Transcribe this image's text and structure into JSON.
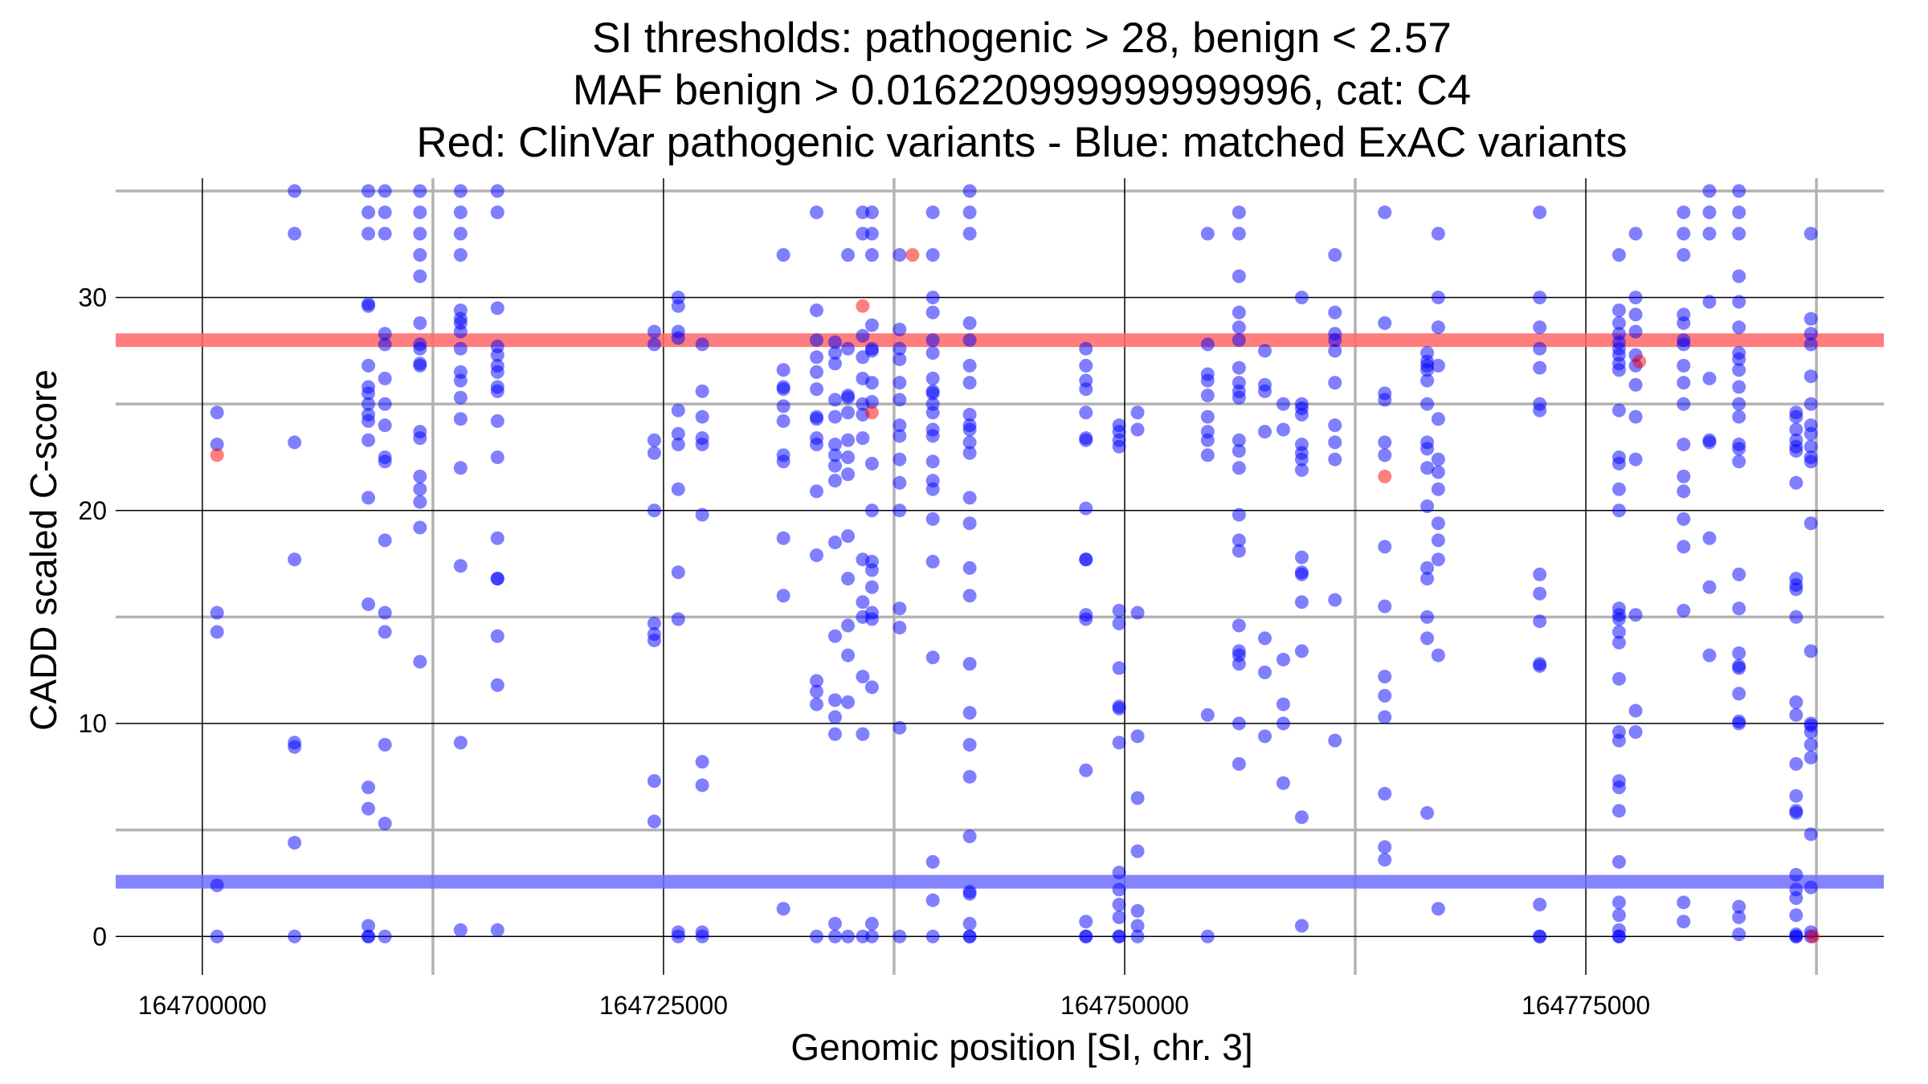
{
  "chart_data": {
    "type": "scatter",
    "title_lines": [
      "SI thresholds: pathogenic > 28, benign < 2.57",
      "MAF benign > 0.016220999999999996, cat: C4",
      "Red: ClinVar pathogenic variants - Blue: matched ExAC variants"
    ],
    "xlabel": "Genomic position [SI, chr. 3]",
    "ylabel": "CADD scaled C-score",
    "xlim": [
      164696000,
      164790500
    ],
    "ylim": [
      -1.8,
      35.6
    ],
    "x_ticks": [
      164700000,
      164725000,
      164750000,
      164775000
    ],
    "x_tick_labels": [
      "164700000",
      "164725000",
      "164750000",
      "164775000"
    ],
    "y_ticks": [
      0,
      10,
      20,
      30
    ],
    "y_tick_labels": [
      "0",
      "10",
      "20",
      "30"
    ],
    "x_grid_major": [
      164700000,
      164725000,
      164750000,
      164775000
    ],
    "x_grid_minor": [
      164712500,
      164737500,
      164762500,
      164787500
    ],
    "y_grid_major": [
      0,
      10,
      20,
      30
    ],
    "y_grid_minor": [
      5,
      15,
      25,
      35
    ],
    "thresholds": [
      {
        "name": "pathogenic",
        "value": 28,
        "color": "#ff6666"
      },
      {
        "name": "benign",
        "value": 2.57,
        "color": "#6f6fff"
      }
    ],
    "colors": {
      "pathogenic_points": "#ff0000",
      "benign_points": "#0000ff"
    },
    "series": [
      {
        "name": "ClinVar pathogenic variants",
        "color": "#ff0000",
        "points": [
          [
            164700800,
            22.6
          ],
          [
            164735800,
            29.6
          ],
          [
            164736300,
            24.6
          ],
          [
            164738500,
            32.0
          ],
          [
            164764100,
            21.6
          ],
          [
            164777900,
            27.0
          ],
          [
            164787300,
            0.0
          ]
        ]
      },
      {
        "name": "matched ExAC variants",
        "color": "#0000ff",
        "columns": [
          {
            "x": 164700800,
            "y": [
              24.6,
              23.1,
              15.2,
              14.3,
              2.4,
              0
            ]
          },
          {
            "x": 164705000,
            "y": [
              35,
              33,
              23.2,
              17.7,
              9.1,
              8.9,
              4.4,
              0
            ]
          },
          {
            "x": 164709000,
            "y": [
              35,
              34,
              33,
              29.7,
              29.6,
              26.8,
              25.8,
              25.5,
              25.0,
              24.5,
              24.2,
              23.3,
              20.6,
              15.6,
              7.0,
              6.0,
              0.5,
              0,
              0
            ]
          },
          {
            "x": 164709900,
            "y": [
              35,
              34,
              33,
              28.3,
              27.8,
              26.2,
              25.0,
              24.0,
              22.5,
              22.3,
              18.6,
              15.2,
              14.3,
              9.0,
              5.3,
              0
            ]
          },
          {
            "x": 164711800,
            "y": [
              35,
              34,
              33,
              32,
              31,
              28.8,
              27.8,
              27.6,
              26.9,
              26.8,
              23.7,
              23.4,
              21.6,
              21.0,
              20.4,
              19.2,
              12.9
            ]
          },
          {
            "x": 164714000,
            "y": [
              35,
              34,
              33,
              32,
              29.4,
              29.0,
              28.8,
              28.4,
              27.6,
              26.5,
              26.1,
              25.3,
              24.3,
              22.0,
              17.4,
              9.1,
              0.3
            ]
          },
          {
            "x": 164716000,
            "y": [
              35,
              34,
              29.5,
              27.7,
              27.3,
              26.8,
              26.5,
              25.8,
              25.6,
              24.2,
              22.5,
              18.7,
              16.8,
              16.8,
              14.1,
              11.8,
              0.3
            ]
          },
          {
            "x": 164724500,
            "y": [
              28.4,
              27.8,
              23.3,
              22.7,
              20.0,
              14.7,
              14.2,
              13.9,
              7.3,
              5.4
            ]
          },
          {
            "x": 164725800,
            "y": [
              30.0,
              29.6,
              28.4,
              28.1,
              24.7,
              23.6,
              23.1,
              21.0,
              17.1,
              14.9,
              0.2,
              0
            ]
          },
          {
            "x": 164727100,
            "y": [
              27.8,
              25.6,
              24.4,
              23.4,
              23.1,
              19.8,
              8.2,
              7.1,
              0.2,
              0
            ]
          },
          {
            "x": 164731500,
            "y": [
              32,
              26.6,
              25.8,
              25.7,
              24.9,
              24.2,
              22.6,
              22.3,
              18.7,
              16.0,
              1.3
            ]
          },
          {
            "x": 164733300,
            "y": [
              34,
              29.4,
              28.0,
              27.2,
              26.5,
              25.7,
              24.4,
              24.3,
              23.4,
              23.1,
              20.9,
              17.9,
              12.0,
              11.5,
              10.9,
              0
            ]
          },
          {
            "x": 164734300,
            "y": [
              27.9,
              27.4,
              26.9,
              25.2,
              24.4,
              23.1,
              22.6,
              22.1,
              21.4,
              18.5,
              14.1,
              11.1,
              10.3,
              9.5,
              0.6,
              0
            ]
          },
          {
            "x": 164735000,
            "y": [
              32,
              27.6,
              25.4,
              25.3,
              24.6,
              23.3,
              22.5,
              21.7,
              18.8,
              16.8,
              14.6,
              13.2,
              11.0,
              0
            ]
          },
          {
            "x": 164735800,
            "y": [
              34,
              33,
              28.2,
              27.2,
              26.2,
              25.0,
              24.5,
              23.4,
              17.7,
              15.7,
              15.0,
              12.2,
              9.5,
              0
            ]
          },
          {
            "x": 164736300,
            "y": [
              34,
              33,
              32,
              28.7,
              27.6,
              27.5,
              26.0,
              25.1,
              22.2,
              20.0,
              17.6,
              17.2,
              16.4,
              15.2,
              14.9,
              11.7,
              0.6,
              0
            ]
          },
          {
            "x": 164737800,
            "y": [
              32,
              28.5,
              27.6,
              27.1,
              26.0,
              25.2,
              24.0,
              23.5,
              22.4,
              21.3,
              20.0,
              15.4,
              14.5,
              9.8,
              0
            ]
          },
          {
            "x": 164739600,
            "y": [
              34,
              32,
              30.0,
              29.3,
              28.0,
              27.4,
              26.2,
              25.6,
              25.5,
              25.0,
              24.6,
              23.8,
              23.5,
              22.3,
              21.4,
              21.0,
              19.6,
              17.6,
              13.1,
              3.5,
              1.7,
              0
            ]
          },
          {
            "x": 164741600,
            "y": [
              35,
              34,
              33,
              28.8,
              28.0,
              26.8,
              26.0,
              24.5,
              24.0,
              23.8,
              23.2,
              22.7,
              20.6,
              19.4,
              17.3,
              16.0,
              12.8,
              10.5,
              9.0,
              7.5,
              4.7,
              2.1,
              2.0,
              0.6,
              0,
              0
            ]
          },
          {
            "x": 164747900,
            "y": [
              27.6,
              26.8,
              26.1,
              25.7,
              24.6,
              23.4,
              23.3,
              20.1,
              17.7,
              17.7,
              15.1,
              14.9,
              7.8,
              0.7,
              0,
              0
            ]
          },
          {
            "x": 164749700,
            "y": [
              24.0,
              23.7,
              23.3,
              23.0,
              15.3,
              14.7,
              12.6,
              10.8,
              10.7,
              9.1,
              3.0,
              2.2,
              1.5,
              0.9,
              0,
              0
            ]
          },
          {
            "x": 164750700,
            "y": [
              24.6,
              23.8,
              15.2,
              9.4,
              6.5,
              4.0,
              1.2,
              0.5,
              0
            ]
          },
          {
            "x": 164754500,
            "y": [
              33,
              27.8,
              26.4,
              26.1,
              25.4,
              24.4,
              23.7,
              23.3,
              22.6,
              10.4,
              0
            ]
          },
          {
            "x": 164756200,
            "y": [
              34,
              33,
              31.0,
              29.3,
              28.6,
              28.0,
              26.7,
              26.0,
              25.6,
              25.3,
              23.3,
              22.8,
              22.0,
              19.8,
              18.6,
              18.1,
              14.6,
              13.4,
              13.2,
              12.8,
              10.0,
              8.1
            ]
          },
          {
            "x": 164757600,
            "y": [
              27.5,
              25.9,
              25.6,
              23.7,
              14.0,
              12.4,
              9.4
            ]
          },
          {
            "x": 164758600,
            "y": [
              25.0,
              23.8,
              13.0,
              10.9,
              10.0,
              7.2
            ]
          },
          {
            "x": 164759600,
            "y": [
              30.0,
              25.0,
              24.8,
              24.5,
              23.1,
              22.7,
              22.4,
              21.9,
              17.8,
              17.1,
              17.0,
              15.7,
              13.4,
              5.6,
              0.5
            ]
          },
          {
            "x": 164761400,
            "y": [
              32,
              29.3,
              28.3,
              28.0,
              27.5,
              26.0,
              24.0,
              23.2,
              22.4,
              15.8,
              9.2
            ]
          },
          {
            "x": 164764100,
            "y": [
              34,
              28.8,
              25.5,
              25.2,
              23.2,
              22.6,
              18.3,
              15.5,
              12.2,
              11.3,
              10.3,
              6.7,
              4.2,
              3.6
            ]
          },
          {
            "x": 164766400,
            "y": [
              27.4,
              27.0,
              26.8,
              26.6,
              26.1,
              25.0,
              23.2,
              22.9,
              22.0,
              20.2,
              17.3,
              16.8,
              15.0,
              14.0,
              5.8
            ]
          },
          {
            "x": 164767000,
            "y": [
              33,
              30.0,
              28.6,
              26.8,
              24.3,
              22.4,
              21.8,
              21.0,
              19.4,
              18.6,
              17.7,
              13.2,
              1.3
            ]
          },
          {
            "x": 164772500,
            "y": [
              34,
              30.0,
              28.6,
              27.6,
              26.7,
              25.0,
              24.7,
              17.0,
              16.1,
              14.8,
              12.8,
              12.7,
              1.5,
              0,
              0
            ]
          },
          {
            "x": 164776800,
            "y": [
              32,
              29.4,
              28.8,
              28.3,
              27.9,
              27.6,
              27.3,
              26.9,
              26.6,
              24.7,
              22.5,
              22.2,
              21.0,
              20.0,
              15.4,
              15.1,
              14.9,
              14.3,
              13.8,
              12.1,
              9.6,
              9.2,
              7.3,
              7.0,
              5.9,
              3.5,
              1.6,
              1.0,
              0.3,
              0,
              0
            ]
          },
          {
            "x": 164777700,
            "y": [
              33,
              30.0,
              29.2,
              28.4,
              27.3,
              26.8,
              25.9,
              24.4,
              22.4,
              15.1,
              10.6,
              9.6
            ]
          },
          {
            "x": 164780300,
            "y": [
              34,
              33,
              32,
              29.2,
              28.8,
              28.0,
              27.8,
              26.8,
              26.0,
              25.0,
              23.1,
              21.6,
              20.9,
              19.6,
              18.3,
              15.3,
              1.6,
              0.7
            ]
          },
          {
            "x": 164781700,
            "y": [
              35,
              34,
              33,
              29.8,
              26.2,
              23.3,
              23.2,
              18.7,
              16.4,
              13.2
            ]
          },
          {
            "x": 164783300,
            "y": [
              35,
              34,
              33,
              31.0,
              29.8,
              28.6,
              27.4,
              27.1,
              26.6,
              25.8,
              25.0,
              24.4,
              23.1,
              22.9,
              22.3,
              17.0,
              15.4,
              13.3,
              12.7,
              12.6,
              11.4,
              10.1,
              10.0,
              1.4,
              0.9,
              0.1
            ]
          },
          {
            "x": 164786400,
            "y": [
              24.6,
              24.4,
              23.8,
              23.3,
              23.0,
              22.8,
              21.3,
              16.8,
              16.5,
              16.3,
              15.0,
              11.0,
              10.4,
              8.1,
              6.6,
              5.9,
              5.8,
              2.9,
              2.2,
              1.8,
              1.0,
              0.1,
              0,
              0
            ]
          },
          {
            "x": 164787200,
            "y": [
              33,
              29.0,
              28.3,
              27.8,
              26.3,
              25.0,
              24.0,
              23.6,
              23.0,
              22.5,
              22.3,
              19.4,
              13.4,
              10.0,
              9.9,
              9.6,
              9.0,
              8.4,
              4.8,
              2.3,
              0.2,
              0
            ]
          }
        ]
      }
    ]
  }
}
